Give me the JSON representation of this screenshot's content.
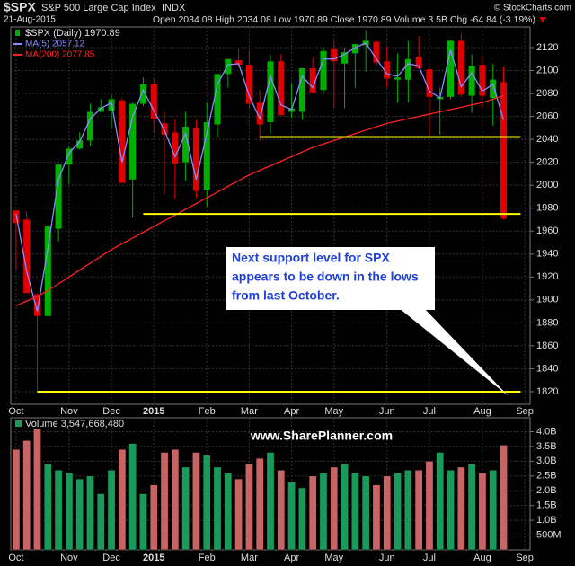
{
  "header": {
    "symbol": "$SPX",
    "name": "S&P 500 Large Cap Index",
    "exchange": "INDX",
    "copyright": "© StockCharts.com",
    "date": "21-Aug-2015",
    "quote": "Open 2034.08  High 2034.08  Low 1970.89  Close 1970.89  Volume 3.5B  Chg -64.84 (-3.19%)"
  },
  "chart_data": [
    {
      "type": "candlestick",
      "legend_label": "$SPX (Daily) 1970.89",
      "categories": [
        "Oct",
        null,
        null,
        null,
        null,
        "Nov",
        null,
        null,
        null,
        "Dec",
        null,
        null,
        null,
        "2015",
        null,
        null,
        null,
        null,
        "Feb",
        null,
        null,
        null,
        "Mar",
        null,
        null,
        null,
        "Apr",
        null,
        null,
        null,
        "May",
        null,
        null,
        null,
        null,
        "Jun",
        null,
        null,
        null,
        "Jul",
        null,
        null,
        null,
        null,
        "Aug",
        null,
        null,
        null,
        "Sep"
      ],
      "open": [
        1978,
        1970,
        1905,
        1886,
        1962,
        2018,
        2032,
        2039,
        2064,
        2065,
        2074,
        2005,
        2071,
        2088,
        2054,
        2046,
        2020,
        2050,
        1996,
        2053,
        2097,
        2109,
        2105,
        2072,
        2055,
        2108,
        2064,
        2064,
        2102,
        2083,
        2119,
        2106,
        2115,
        2122,
        2125,
        2108,
        2092,
        2092,
        2112,
        2101,
        2075,
        2077,
        2126,
        2078,
        2105,
        2076,
        2090,
        null,
        null
      ],
      "high": [
        1978,
        1977,
        1906,
        1965,
        2018,
        2034,
        2046,
        2071,
        2075,
        2079,
        2076,
        2072,
        2094,
        2093,
        2064,
        2057,
        2064,
        2057,
        2072,
        2097,
        2110,
        2119,
        2117,
        2083,
        2114,
        2114,
        2089,
        2102,
        2111,
        2120,
        2126,
        2120,
        2123,
        2135,
        2126,
        2121,
        2115,
        2126,
        2130,
        2102,
        2085,
        2127,
        2132,
        2114,
        2113,
        2106,
        2103,
        null,
        null
      ],
      "low": [
        1926,
        1906,
        1821,
        1886,
        1951,
        2001,
        2031,
        2034,
        2064,
        2049,
        2002,
        1972,
        2069,
        2046,
        1992,
        1988,
        2004,
        1989,
        1981,
        2041,
        2085,
        2103,
        2067,
        2039,
        2045,
        2061,
        2059,
        2057,
        2081,
        2080,
        2067,
        2067,
        2085,
        2099,
        2104,
        2085,
        2072,
        2072,
        2101,
        2044,
        2044,
        2075,
        2077,
        2063,
        2067,
        2052,
        1970,
        null,
        null
      ],
      "close": [
        1967,
        1906,
        1886,
        1964,
        2018,
        2032,
        2039,
        2064,
        2068,
        2075,
        2002,
        2071,
        2088,
        2058,
        2044,
        2019,
        2051,
        1995,
        2055,
        2097,
        2110,
        2105,
        2071,
        2053,
        2108,
        2061,
        2067,
        2102,
        2081,
        2117,
        2108,
        2116,
        2123,
        2126,
        2107,
        2093,
        2094,
        2110,
        2102,
        2077,
        2077,
        2126,
        2079,
        2104,
        2078,
        2092,
        1971,
        null,
        null
      ],
      "up_color": "#00b000",
      "down_color": "#e00000",
      "series": [
        {
          "name": "MA(5) 2057.12",
          "color": "#8c8cff",
          "values": [
            1975,
            1925,
            1890,
            1945,
            2005,
            2028,
            2038,
            2058,
            2067,
            2072,
            2020,
            2060,
            2083,
            2065,
            2048,
            2025,
            2045,
            2005,
            2045,
            2088,
            2105,
            2106,
            2078,
            2058,
            2095,
            2070,
            2066,
            2095,
            2085,
            2110,
            2110,
            2114,
            2120,
            2124,
            2110,
            2097,
            2095,
            2106,
            2104,
            2082,
            2076,
            2118,
            2086,
            2098,
            2082,
            2088,
            2057,
            null,
            null
          ]
        },
        {
          "name": "MA(200) 2077.85",
          "color": "#ff2020",
          "values": [
            1895,
            1899,
            1903,
            1908,
            1914,
            1920,
            1926,
            1932,
            1938,
            1944,
            1949,
            1954,
            1959,
            1964,
            1969,
            1974,
            1979,
            1984,
            1989,
            1994,
            1999,
            2004,
            2009,
            2013,
            2017,
            2021,
            2025,
            2029,
            2033,
            2036,
            2039,
            2042,
            2045,
            2048,
            2051,
            2054,
            2056,
            2058,
            2060,
            2062,
            2064,
            2066,
            2068,
            2070,
            2072,
            2075,
            2078,
            null,
            null
          ]
        }
      ],
      "support_lines": [
        {
          "value": 2042,
          "start": 23,
          "end": 47
        },
        {
          "value": 1975,
          "start": 12,
          "end": 47
        },
        {
          "value": 1820,
          "start": 2,
          "end": 47
        }
      ],
      "support_color": "#ffff00",
      "annotation": [
        "Next support level for SPX",
        "appears to be down in the lows",
        "from last October."
      ],
      "ylim": [
        1809,
        2138
      ],
      "yticks": [
        1820,
        1840,
        1860,
        1880,
        1900,
        1920,
        1940,
        1960,
        1980,
        2000,
        2020,
        2040,
        2060,
        2080,
        2100,
        2120
      ],
      "grid": true
    },
    {
      "type": "bar",
      "title": "Volume 3,547,668,480",
      "watermark": "www.SharePlanner.com",
      "values": [
        3400000000,
        3700000000,
        4100000000,
        2900000000,
        2700000000,
        2600000000,
        2400000000,
        2500000000,
        1900000000,
        2700000000,
        3400000000,
        3600000000,
        1900000000,
        2200000000,
        3300000000,
        3400000000,
        2800000000,
        3300000000,
        3200000000,
        2800000000,
        2600000000,
        2400000000,
        2900000000,
        3100000000,
        3300000000,
        2700000000,
        2300000000,
        2100000000,
        2500000000,
        2600000000,
        2800000000,
        2900000000,
        2600000000,
        2500000000,
        2200000000,
        2500000000,
        2600000000,
        2700000000,
        2700000000,
        3000000000,
        3300000000,
        2700000000,
        2800000000,
        2900000000,
        2600000000,
        2700000000,
        3547668480,
        null,
        null
      ],
      "ylim": [
        0,
        4470000000
      ],
      "yticks": [
        {
          "value": 500000000,
          "label": "500M"
        },
        {
          "value": 1000000000,
          "label": "1.0B"
        },
        {
          "value": 1500000000,
          "label": "1.5B"
        },
        {
          "value": 2000000000,
          "label": "2.0B"
        },
        {
          "value": 2500000000,
          "label": "2.5B"
        },
        {
          "value": 3000000000,
          "label": "3.0B"
        },
        {
          "value": 3500000000,
          "label": "3.5B"
        },
        {
          "value": 4000000000,
          "label": "4.0B"
        }
      ],
      "grid": true
    }
  ]
}
